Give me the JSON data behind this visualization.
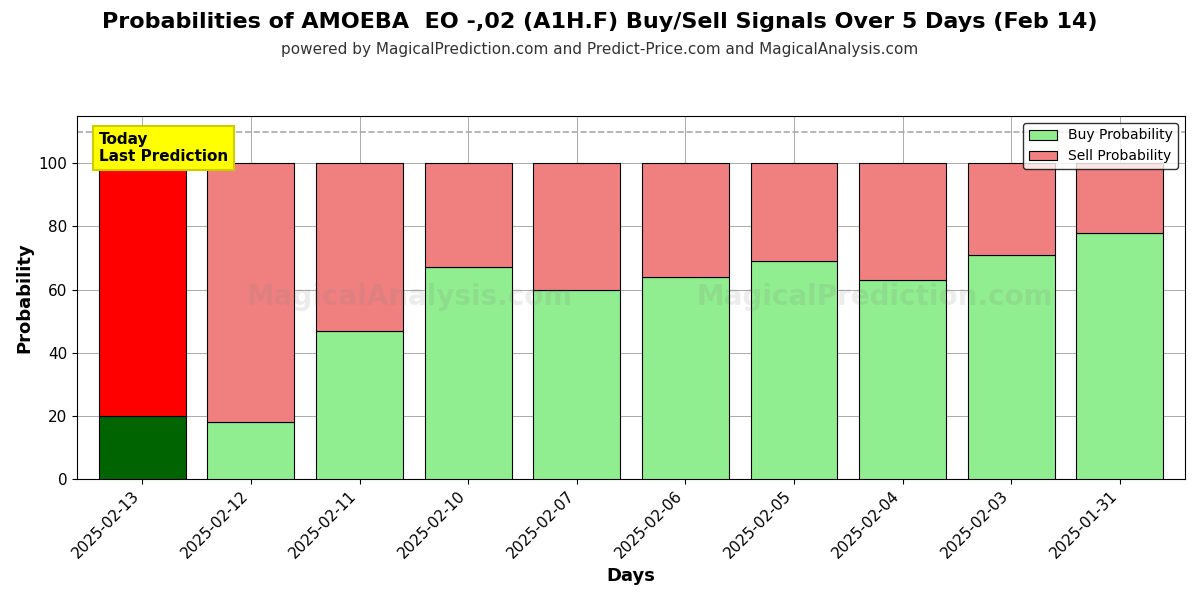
{
  "title": "Probabilities of AMOEBA  EO -,02 (A1H.F) Buy/Sell Signals Over 5 Days (Feb 14)",
  "subtitle": "powered by MagicalPrediction.com and Predict-Price.com and MagicalAnalysis.com",
  "xlabel": "Days",
  "ylabel": "Probability",
  "categories": [
    "2025-02-13",
    "2025-02-12",
    "2025-02-11",
    "2025-02-10",
    "2025-02-07",
    "2025-02-06",
    "2025-02-05",
    "2025-02-04",
    "2025-02-03",
    "2025-01-31"
  ],
  "buy_values": [
    20,
    18,
    47,
    67,
    60,
    64,
    69,
    63,
    71,
    78
  ],
  "sell_values": [
    80,
    82,
    53,
    33,
    40,
    36,
    31,
    37,
    29,
    22
  ],
  "buy_colors_first": "#006400",
  "sell_colors_first": "#ff0000",
  "buy_colors_rest": "#90ee90",
  "sell_colors_rest": "#f08080",
  "bar_edge_color": "#000000",
  "bar_linewidth": 0.8,
  "ylim": [
    0,
    115
  ],
  "yticks": [
    0,
    20,
    40,
    60,
    80,
    100
  ],
  "dashed_line_y": 110,
  "annotation_text": "Today\nLast Prediction",
  "annotation_bgcolor": "#ffff00",
  "legend_buy_label": "Buy Probability",
  "legend_sell_label": "Sell Probability",
  "watermark_alpha": 0.15,
  "background_color": "#ffffff",
  "grid_color": "#aaaaaa",
  "title_fontsize": 16,
  "subtitle_fontsize": 11,
  "axis_label_fontsize": 13,
  "tick_fontsize": 11
}
